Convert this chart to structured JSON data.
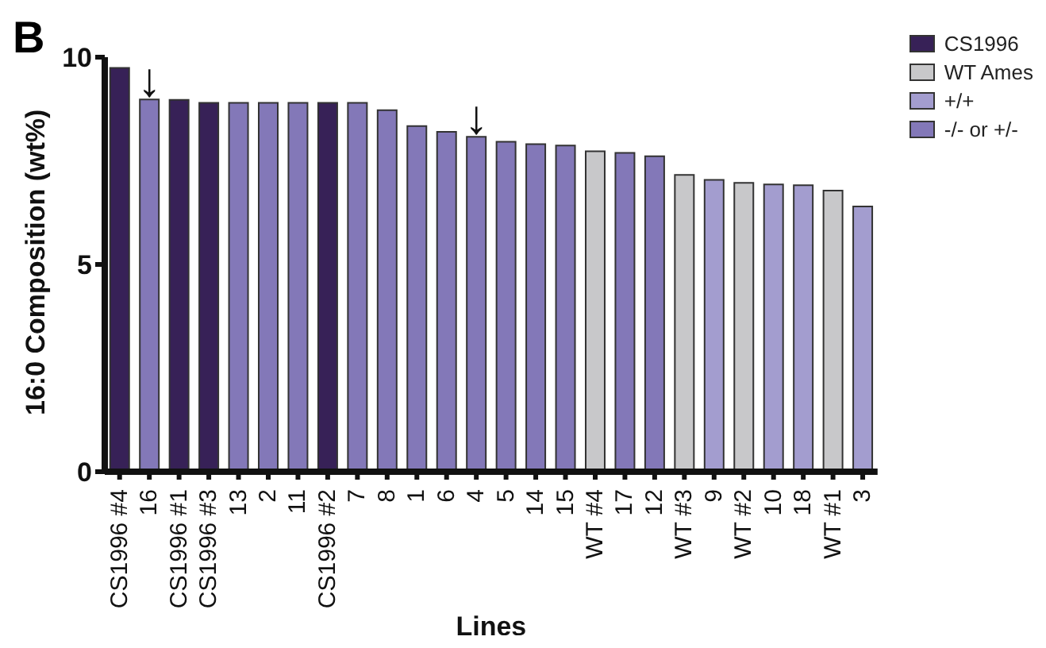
{
  "chart_data": {
    "type": "bar",
    "title": "B",
    "xlabel": "Lines",
    "ylabel": "16:0 Composition (wt%)",
    "categories": [
      "CS1996 #4",
      "16",
      "CS1996 #1",
      "CS1996 #3",
      "13",
      "2",
      "11",
      "CS1996 #2",
      "7",
      "8",
      "1",
      "6",
      "4",
      "5",
      "14",
      "15",
      "WT #4",
      "17",
      "12",
      "WT #3",
      "9",
      "WT #2",
      "10",
      "18",
      "WT #1",
      "3"
    ],
    "stacked": true,
    "series": [
      {
        "name": "CS1996",
        "color": "#372157",
        "values": [
          9.74,
          null,
          8.97,
          8.9,
          null,
          null,
          null,
          8.9,
          null,
          null,
          null,
          null,
          null,
          null,
          null,
          null,
          null,
          null,
          null,
          null,
          null,
          null,
          null,
          null,
          null,
          null
        ]
      },
      {
        "name": "WT Ames",
        "color": "#c8c8ca",
        "values": [
          null,
          null,
          null,
          null,
          null,
          null,
          null,
          null,
          null,
          null,
          null,
          null,
          null,
          null,
          null,
          null,
          7.73,
          null,
          null,
          7.16,
          null,
          6.97,
          null,
          null,
          6.78,
          null
        ]
      },
      {
        "name": "+/+",
        "color": "#a39dcf",
        "values": [
          null,
          null,
          null,
          null,
          null,
          null,
          null,
          null,
          null,
          null,
          null,
          null,
          null,
          null,
          null,
          null,
          null,
          null,
          null,
          null,
          7.04,
          null,
          6.93,
          6.91,
          null,
          6.4
        ]
      },
      {
        "name": "-/- or +/-",
        "color": "#8378b8",
        "values": [
          null,
          8.98,
          null,
          null,
          8.9,
          8.9,
          8.9,
          null,
          8.9,
          8.72,
          8.34,
          8.2,
          8.08,
          7.96,
          7.9,
          7.87,
          null,
          7.69,
          7.61,
          null,
          null,
          null,
          null,
          null,
          null,
          null
        ]
      }
    ],
    "ylim": [
      0,
      10
    ],
    "yticks": [
      0,
      5,
      10
    ],
    "grid": false,
    "legend": "top right",
    "annotations": [
      {
        "text": "↓",
        "x": "16",
        "y": 8.98
      },
      {
        "text": "↓",
        "x": "4",
        "y": 8.08
      }
    ]
  }
}
